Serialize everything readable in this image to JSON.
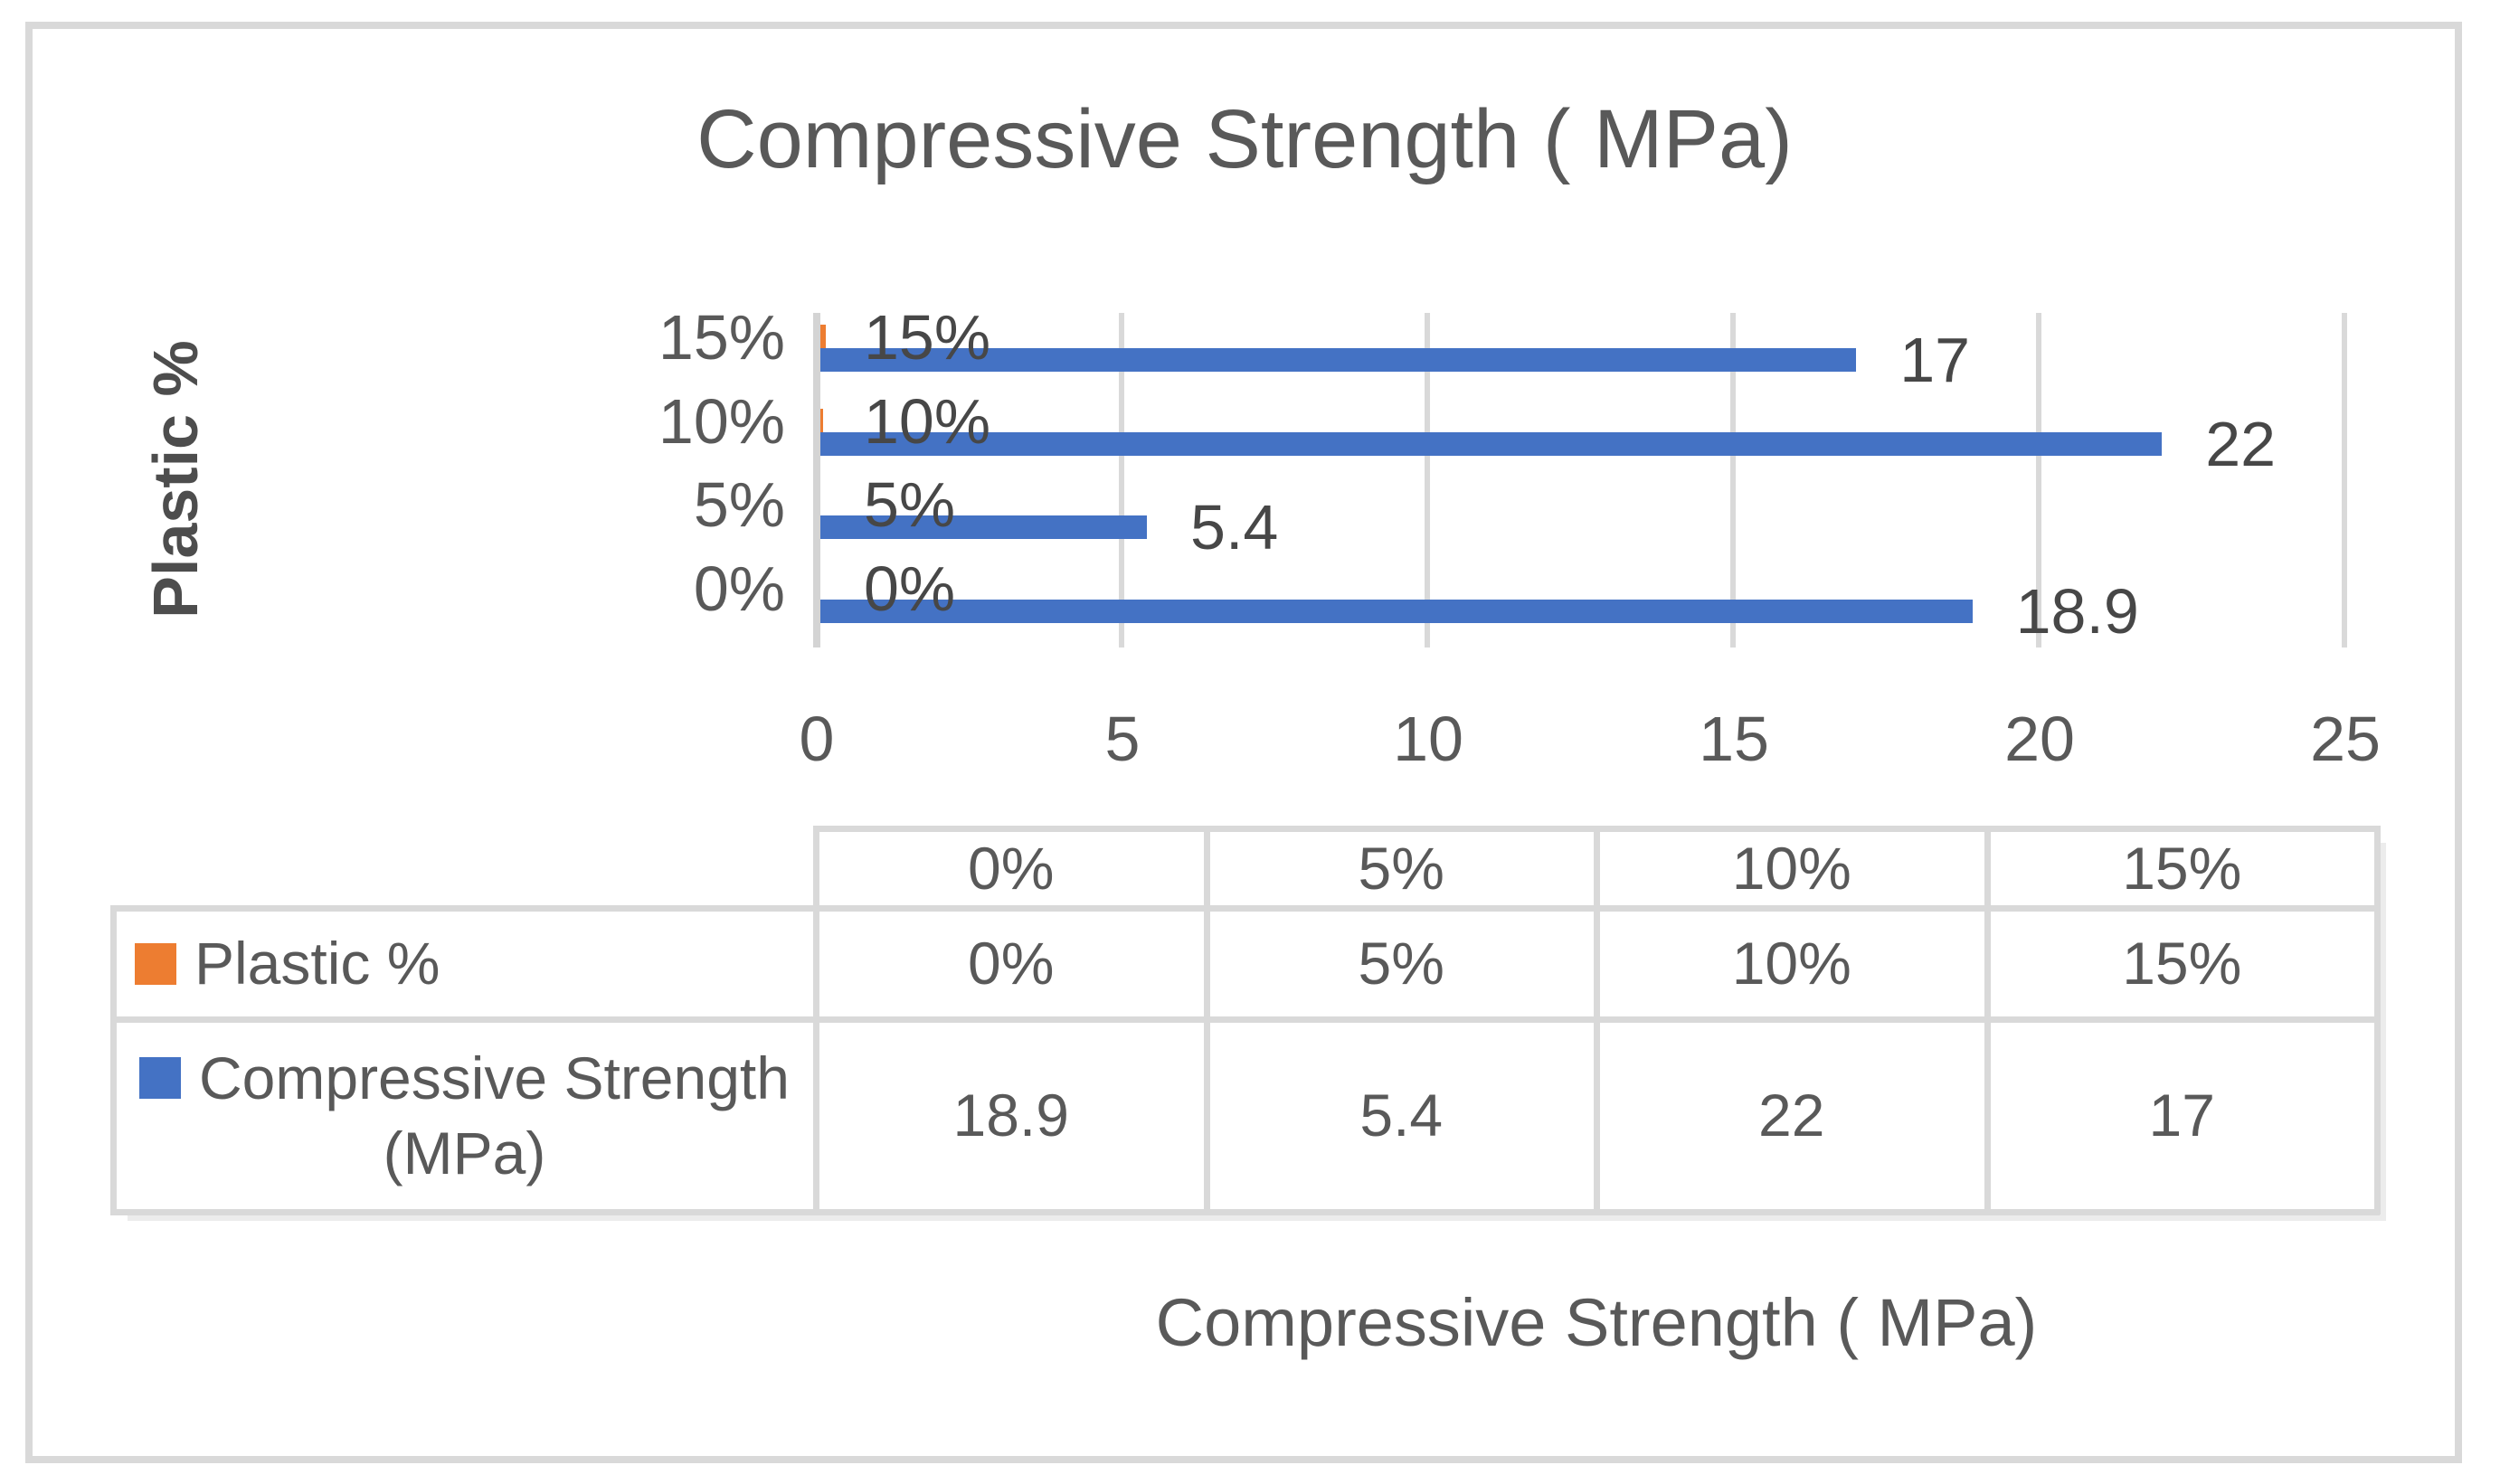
{
  "chart_data": {
    "type": "bar",
    "orientation": "horizontal",
    "title": "Compressive Strength ( MPa)",
    "y_axis_title": "Plastic %",
    "x_axis_title": "Compressive Strength ( MPa)",
    "categories": [
      "0%",
      "5%",
      "10%",
      "15%"
    ],
    "series": [
      {
        "name": "Plastic %",
        "color": "#ED7D31",
        "values": [
          0,
          0.05,
          0.1,
          0.15
        ],
        "labels": [
          "0%",
          "5%",
          "10%",
          "15%"
        ]
      },
      {
        "name": "Compressive Strength (MPa)",
        "color": "#4472C4",
        "values": [
          18.9,
          5.4,
          22,
          17
        ],
        "labels": [
          "18.9",
          "5.4",
          "22",
          "17"
        ]
      }
    ],
    "xlim": [
      0,
      25
    ],
    "x_ticks": [
      0,
      5,
      10,
      15,
      20,
      25
    ],
    "gridlines": "vertical",
    "legend_position": "table-left"
  },
  "table": {
    "header_values": [
      "0%",
      "5%",
      "10%",
      "15%"
    ],
    "rows": [
      {
        "label": "Plastic %",
        "label_line1": "Plastic %",
        "label_line2": "",
        "swatch_color": "#ED7D31",
        "values": [
          "0%",
          "5%",
          "10%",
          "15%"
        ]
      },
      {
        "label": "Compressive Strength (MPa)",
        "label_line1": "Compressive Strength",
        "label_line2": "(MPa)",
        "swatch_color": "#4472C4",
        "values": [
          "18.9",
          "5.4",
          "22",
          "17"
        ]
      }
    ]
  },
  "colors": {
    "blue": "#4472C4",
    "orange": "#ED7D31",
    "gridline": "#D9D9D9",
    "frame_border": "#D9D9D9",
    "axis_text": "#595959",
    "data_label_text": "#474747"
  }
}
